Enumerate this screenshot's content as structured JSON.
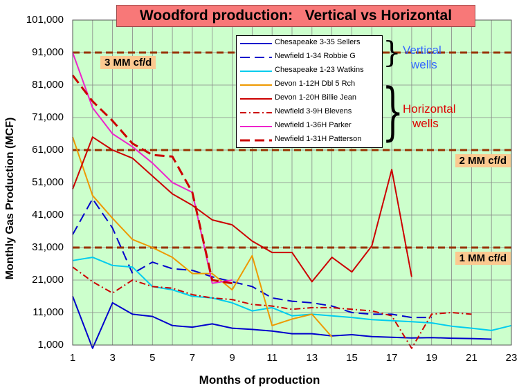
{
  "title": "Woodford production:   Vertical vs Horizontal",
  "colors": {
    "plot_bg": "#ccffcc",
    "grid": "#888888",
    "title_bg": "#f87878",
    "ref_line": "#993300",
    "ref_label_bg": "#fbc990",
    "vertical_label": "#3366ff",
    "horizontal_label": "#dd0000"
  },
  "chart_data": {
    "type": "line",
    "title": "Woodford production:   Vertical vs Horizontal",
    "xlabel": "Months of production",
    "ylabel": "Monthly Gas Production (MCF)",
    "xlim": [
      1,
      23
    ],
    "ylim": [
      1000,
      101000
    ],
    "x_ticks": [
      "1",
      "3",
      "5",
      "7",
      "9",
      "11",
      "13",
      "15",
      "17",
      "19",
      "21",
      "23"
    ],
    "y_ticks": [
      "101,000",
      "91,000",
      "81,000",
      "71,000",
      "61,000",
      "51,000",
      "41,000",
      "31,000",
      "21,000",
      "11,000",
      "1,000"
    ],
    "grid": true,
    "legend_position": "top-center",
    "reference_lines": [
      {
        "label": "3 MM cf/d",
        "y": 91000
      },
      {
        "label": "2 MM cf/d",
        "y": 61000
      },
      {
        "label": "1 MM cf/d",
        "y": 31000
      }
    ],
    "series": [
      {
        "name": "Chesapeake 3-35 Sellers",
        "color": "#0000cc",
        "dash": "solid",
        "width": 2,
        "points": [
          [
            1,
            16000
          ],
          [
            2,
            0
          ],
          [
            3,
            14000
          ],
          [
            4,
            10500
          ],
          [
            5,
            9800
          ],
          [
            6,
            7000
          ],
          [
            7,
            6500
          ],
          [
            8,
            7500
          ],
          [
            9,
            6200
          ],
          [
            10,
            5800
          ],
          [
            11,
            5300
          ],
          [
            12,
            4500
          ],
          [
            13,
            4500
          ],
          [
            14,
            3800
          ],
          [
            15,
            4200
          ],
          [
            16,
            3600
          ],
          [
            17,
            3400
          ],
          [
            18,
            3200
          ],
          [
            19,
            3300
          ],
          [
            20,
            3100
          ],
          [
            21,
            3000
          ],
          [
            22,
            2800
          ]
        ]
      },
      {
        "name": "Newfield 1-34 Robbie G",
        "color": "#0000cc",
        "dash": "long",
        "width": 2,
        "points": [
          [
            1,
            35000
          ],
          [
            2,
            46000
          ],
          [
            3,
            37000
          ],
          [
            4,
            23000
          ],
          [
            5,
            26500
          ],
          [
            6,
            24500
          ],
          [
            7,
            24000
          ],
          [
            8,
            22000
          ],
          [
            9,
            20500
          ],
          [
            10,
            19000
          ],
          [
            11,
            15500
          ],
          [
            12,
            14500
          ],
          [
            13,
            14000
          ],
          [
            14,
            13000
          ],
          [
            15,
            11000
          ],
          [
            16,
            10500
          ],
          [
            17,
            10500
          ],
          [
            18,
            9500
          ],
          [
            19,
            9500
          ]
        ]
      },
      {
        "name": "Chesapeake 1-23 Watkins",
        "color": "#00ccee",
        "dash": "solid",
        "width": 2,
        "points": [
          [
            1,
            27000
          ],
          [
            2,
            28000
          ],
          [
            3,
            25500
          ],
          [
            4,
            25000
          ],
          [
            5,
            19000
          ],
          [
            6,
            18000
          ],
          [
            7,
            16000
          ],
          [
            8,
            15500
          ],
          [
            9,
            14000
          ],
          [
            10,
            11500
          ],
          [
            11,
            12500
          ],
          [
            12,
            10000
          ],
          [
            13,
            10500
          ],
          [
            14,
            10000
          ],
          [
            15,
            9500
          ],
          [
            16,
            8800
          ],
          [
            17,
            8500
          ],
          [
            18,
            8200
          ],
          [
            19,
            7800
          ],
          [
            20,
            6800
          ],
          [
            21,
            6200
          ],
          [
            22,
            5500
          ],
          [
            23,
            7000
          ]
        ]
      },
      {
        "name": "Devon 1-12H Dbl 5 Rch",
        "color": "#ee9900",
        "dash": "solid",
        "width": 2,
        "points": [
          [
            1,
            65000
          ],
          [
            2,
            47000
          ],
          [
            3,
            40000
          ],
          [
            4,
            33500
          ],
          [
            5,
            31000
          ],
          [
            6,
            28000
          ],
          [
            7,
            23000
          ],
          [
            8,
            23000
          ],
          [
            9,
            18000
          ],
          [
            10,
            28500
          ],
          [
            11,
            7000
          ],
          [
            12,
            9000
          ],
          [
            13,
            10500
          ],
          [
            14,
            3500
          ]
        ]
      },
      {
        "name": "Devon 1-20H Billie Jean",
        "color": "#cc0000",
        "dash": "solid",
        "width": 2,
        "points": [
          [
            1,
            49000
          ],
          [
            2,
            65000
          ],
          [
            3,
            61000
          ],
          [
            4,
            58500
          ],
          [
            5,
            53000
          ],
          [
            6,
            47500
          ],
          [
            7,
            44000
          ],
          [
            8,
            39500
          ],
          [
            9,
            38000
          ],
          [
            10,
            33000
          ],
          [
            11,
            29500
          ],
          [
            12,
            29500
          ],
          [
            13,
            20500
          ],
          [
            14,
            28000
          ],
          [
            15,
            23500
          ],
          [
            16,
            31500
          ],
          [
            17,
            55000
          ],
          [
            18,
            22000
          ]
        ]
      },
      {
        "name": "Newfield 3-9H Blevens",
        "color": "#cc0000",
        "dash": "dashdot",
        "width": 2,
        "points": [
          [
            1,
            25000
          ],
          [
            2,
            20500
          ],
          [
            3,
            17000
          ],
          [
            4,
            21000
          ],
          [
            5,
            19000
          ],
          [
            6,
            18500
          ],
          [
            7,
            16500
          ],
          [
            8,
            15500
          ],
          [
            9,
            15000
          ],
          [
            10,
            13500
          ],
          [
            11,
            13000
          ],
          [
            12,
            12000
          ],
          [
            13,
            12500
          ],
          [
            14,
            12500
          ],
          [
            15,
            12000
          ],
          [
            16,
            11500
          ],
          [
            17,
            10000
          ],
          [
            18,
            0
          ],
          [
            19,
            10500
          ],
          [
            20,
            11000
          ],
          [
            21,
            10500
          ]
        ]
      },
      {
        "name": "Newfield 1-36H Parker",
        "color": "#ee22cc",
        "dash": "solid",
        "width": 2,
        "points": [
          [
            1,
            91000
          ],
          [
            2,
            74000
          ],
          [
            3,
            66000
          ],
          [
            4,
            62000
          ],
          [
            5,
            57000
          ],
          [
            6,
            51000
          ],
          [
            7,
            48000
          ],
          [
            8,
            20000
          ],
          [
            9,
            21000
          ]
        ]
      },
      {
        "name": "Newfield 1-31H Patterson",
        "color": "#cc0000",
        "dash": "long",
        "width": 3,
        "points": [
          [
            1,
            84000
          ],
          [
            2,
            76000
          ],
          [
            3,
            70000
          ],
          [
            4,
            63000
          ],
          [
            5,
            59500
          ],
          [
            6,
            59000
          ],
          [
            7,
            48000
          ],
          [
            8,
            21000
          ],
          [
            9,
            20000
          ]
        ]
      }
    ],
    "groups": [
      {
        "label_lines": [
          "Vertical",
          "wells"
        ],
        "members": [
          "Chesapeake 3-35 Sellers",
          "Newfield 1-34 Robbie G",
          "Chesapeake 1-23 Watkins"
        ]
      },
      {
        "label_lines": [
          "Horizontal",
          "wells"
        ],
        "members": [
          "Devon 1-12H Dbl 5 Rch",
          "Devon 1-20H Billie Jean",
          "Newfield 3-9H Blevens",
          "Newfield 1-36H Parker",
          "Newfield 1-31H Patterson"
        ]
      }
    ]
  }
}
